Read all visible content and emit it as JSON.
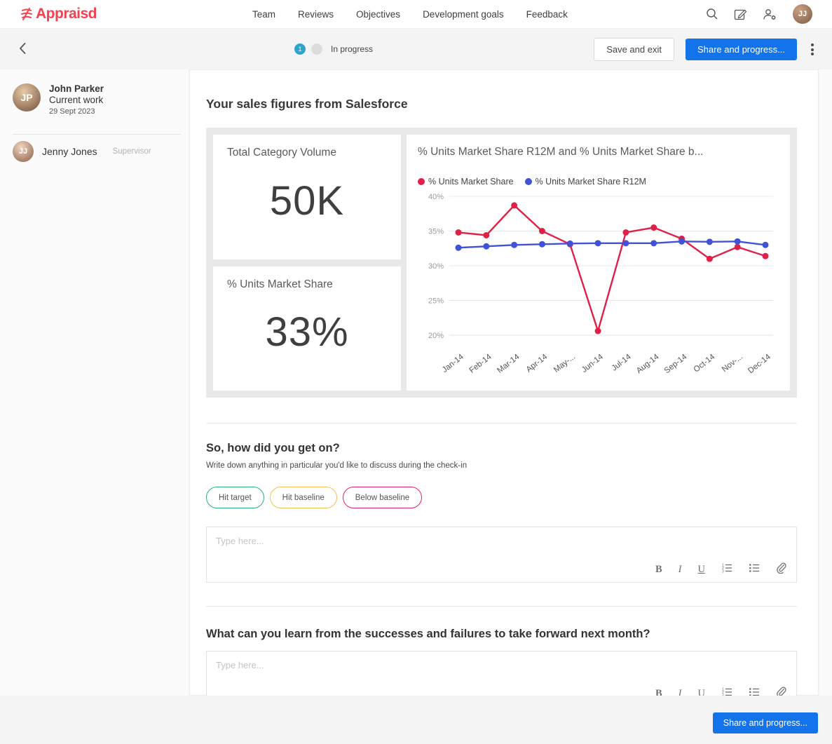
{
  "brand": {
    "name": "Appraisd",
    "color": "#f7404f"
  },
  "nav": {
    "items": [
      "Team",
      "Reviews",
      "Objectives",
      "Development goals",
      "Feedback"
    ]
  },
  "toolbar": {
    "step_number": "1",
    "status_label": "In progress",
    "step_color": "#2ea4cb",
    "save_label": "Save and exit",
    "share_label": "Share and progress...",
    "accent_blue": "#1273eb"
  },
  "sidebar": {
    "user": {
      "name": "John Parker",
      "initials": "JP",
      "subtitle": "Current work",
      "date": "29 Sept 2023"
    },
    "supervisor": {
      "name": "Jenny Jones",
      "initials": "JJ",
      "role": "Supervisor"
    }
  },
  "main": {
    "section1_title": "Your sales figures from Salesforce",
    "kpis": [
      {
        "label": "Total Category Volume",
        "value": "50K"
      },
      {
        "label": "% Units Market Share",
        "value": "33%"
      }
    ],
    "question1": {
      "title": "So, how did you get on?",
      "subtitle": "Write down anything in particular you'd like to discuss during the check-in",
      "tags": [
        {
          "label": "Hit target",
          "color": "#27b376"
        },
        {
          "label": "Hit baseline",
          "color": "#f2c24e"
        },
        {
          "label": "Below baseline",
          "color": "#e02360"
        }
      ],
      "placeholder": "Type here..."
    },
    "question2": {
      "title": "What can you learn from the successes and failures to take forward next month?",
      "placeholder": "Type here..."
    },
    "editor": {
      "tools": [
        {
          "name": "bold",
          "glyph": "B"
        },
        {
          "name": "italic",
          "glyph": "I"
        },
        {
          "name": "underline",
          "glyph": "U"
        },
        {
          "name": "ordered-list"
        },
        {
          "name": "unordered-list"
        },
        {
          "name": "attachment"
        }
      ]
    }
  },
  "footer": {
    "share_label": "Share and progress..."
  },
  "chart_data": {
    "type": "line",
    "title": "% Units Market Share R12M and % Units Market Share b...",
    "categories": [
      "Jan-14",
      "Feb-14",
      "Mar-14",
      "Apr-14",
      "May-...",
      "Jun-14",
      "Jul-14",
      "Aug-14",
      "Sep-14",
      "Oct-14",
      "Nov-...",
      "Dec-14"
    ],
    "series": [
      {
        "name": "% Units Market Share",
        "color": "#e02048",
        "values": [
          34.8,
          34.4,
          38.7,
          35.0,
          33.1,
          20.6,
          34.8,
          35.5,
          33.9,
          31.0,
          32.7,
          31.4
        ]
      },
      {
        "name": "% Units Market Share R12M",
        "color": "#4152d9",
        "values": [
          32.6,
          32.8,
          33.0,
          33.1,
          33.2,
          33.25,
          33.25,
          33.25,
          33.5,
          33.45,
          33.5,
          33.0
        ]
      }
    ],
    "ylim": [
      20,
      40
    ],
    "yticks": [
      20,
      25,
      30,
      35,
      40
    ],
    "ytick_labels": [
      "20%",
      "25%",
      "30%",
      "35%",
      "40%"
    ],
    "xlabel": "",
    "ylabel": "",
    "legend_position": "top",
    "grid": true
  }
}
